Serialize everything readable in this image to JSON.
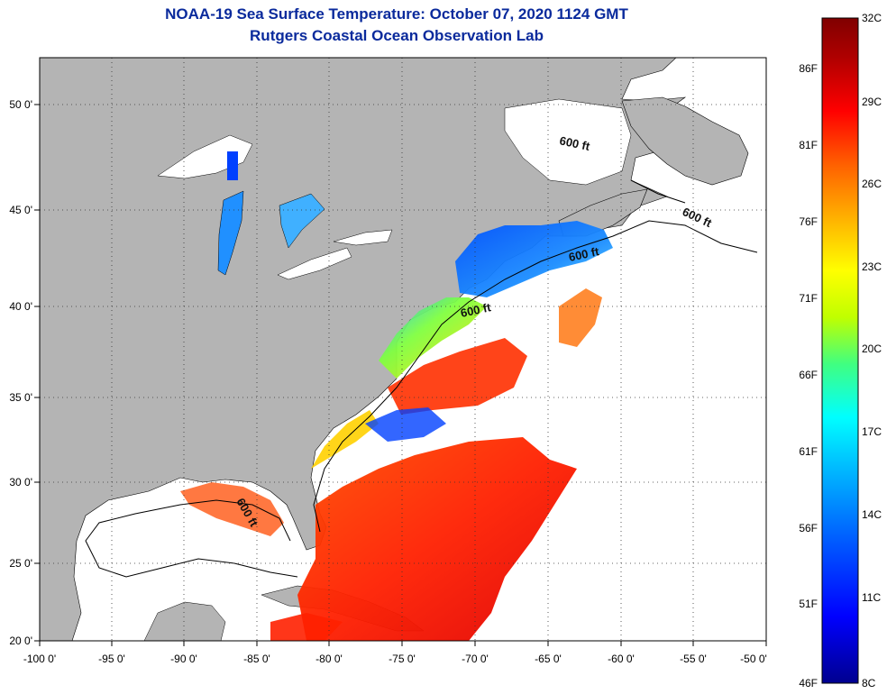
{
  "title": "NOAA-19 Sea Surface Temperature:  October 07, 2020 1124 GMT",
  "subtitle": "Rutgers Coastal Ocean Observation Lab",
  "lon_labels": [
    "-100 0'",
    "-95 0'",
    "-90 0'",
    "-85 0'",
    "-80 0'",
    "-75 0'",
    "-70 0'",
    "-65 0'",
    "-60 0'",
    "-55 0'",
    "-50 0'"
  ],
  "lat_labels": [
    "50 0'",
    "45 0'",
    "40 0'",
    "35 0'",
    "30 0'",
    "25 0'",
    "20 0'"
  ],
  "contour_label": "600 ft",
  "colorbar": {
    "celsius": [
      "32C",
      "29C",
      "26C",
      "23C",
      "20C",
      "17C",
      "14C",
      "11C",
      "8C"
    ],
    "fahrenheit": [
      "86F",
      "81F",
      "76F",
      "71F",
      "66F",
      "61F",
      "56F",
      "51F",
      "46F"
    ],
    "colors": [
      "#00008f",
      "#0000ff",
      "#0060ff",
      "#00c0ff",
      "#00ffff",
      "#40ff80",
      "#c0ff00",
      "#ffff00",
      "#ffb000",
      "#ff6000",
      "#ff0000",
      "#b00000",
      "#800000"
    ]
  },
  "colors": {
    "land": "#b4b4b4",
    "ocean_no_data": "#ffffff",
    "title": "#0a2a9c"
  }
}
